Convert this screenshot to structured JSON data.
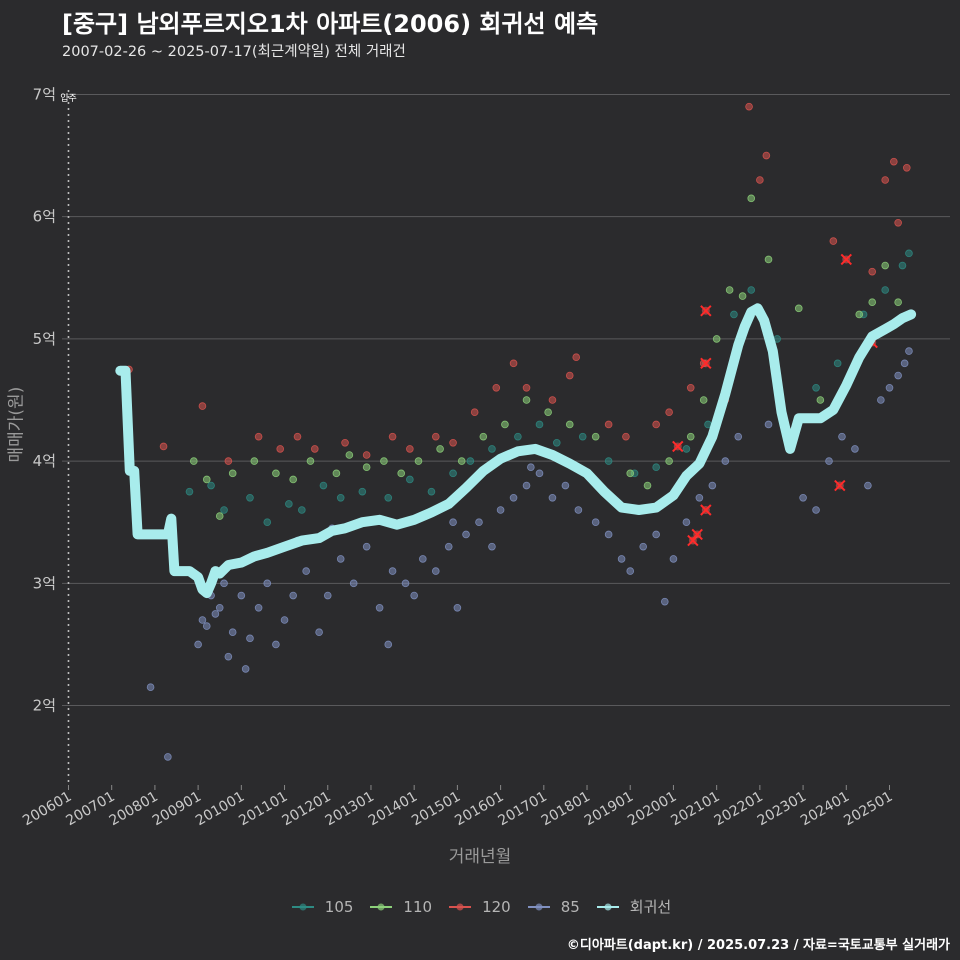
{
  "title": "[중구] 남외푸르지오1차 아파트(2006) 회귀선 예측",
  "subtitle": "2007-02-26 ~ 2025-07-17(최근계약일) 전체 거래건",
  "caption": "©디아파트(dapt.kr) / 2025.07.23 / 자료=국토교통부 실거래가",
  "chart_data": {
    "type": "scatter",
    "xlabel": "거래년월",
    "ylabel": "매매가(원)",
    "xlim": [
      2005.85,
      2026.4
    ],
    "ylim": [
      1.35,
      7.2
    ],
    "x_ticks": [
      {
        "v": 2006.0,
        "label": "200601"
      },
      {
        "v": 2007.0,
        "label": "200701"
      },
      {
        "v": 2008.0,
        "label": "200801"
      },
      {
        "v": 2009.0,
        "label": "200901"
      },
      {
        "v": 2010.0,
        "label": "201001"
      },
      {
        "v": 2011.0,
        "label": "201101"
      },
      {
        "v": 2012.0,
        "label": "201201"
      },
      {
        "v": 2013.0,
        "label": "201301"
      },
      {
        "v": 2014.0,
        "label": "201401"
      },
      {
        "v": 2015.0,
        "label": "201501"
      },
      {
        "v": 2016.0,
        "label": "201601"
      },
      {
        "v": 2017.0,
        "label": "201701"
      },
      {
        "v": 2018.0,
        "label": "201801"
      },
      {
        "v": 2019.0,
        "label": "201901"
      },
      {
        "v": 2020.0,
        "label": "202001"
      },
      {
        "v": 2021.0,
        "label": "202101"
      },
      {
        "v": 2022.0,
        "label": "202201"
      },
      {
        "v": 2023.0,
        "label": "202301"
      },
      {
        "v": 2024.0,
        "label": "202401"
      },
      {
        "v": 2025.0,
        "label": "202501"
      }
    ],
    "y_ticks": [
      {
        "v": 2,
        "label": "2억"
      },
      {
        "v": 3,
        "label": "3억"
      },
      {
        "v": 4,
        "label": "4억"
      },
      {
        "v": 5,
        "label": "5억"
      },
      {
        "v": 6,
        "label": "6억"
      },
      {
        "v": 7,
        "label": "7억"
      }
    ],
    "annotation": {
      "x": 2006.0,
      "label": "입주"
    },
    "grid": true,
    "legend_position": "bottom",
    "series": [
      {
        "name": "105",
        "color": "#2e8b83",
        "points": [
          [
            2008.8,
            3.75
          ],
          [
            2009.3,
            3.8
          ],
          [
            2009.6,
            3.6
          ],
          [
            2010.2,
            3.7
          ],
          [
            2010.6,
            3.5
          ],
          [
            2011.1,
            3.65
          ],
          [
            2011.4,
            3.6
          ],
          [
            2011.9,
            3.8
          ],
          [
            2012.3,
            3.7
          ],
          [
            2012.8,
            3.75
          ],
          [
            2013.4,
            3.7
          ],
          [
            2013.9,
            3.85
          ],
          [
            2014.4,
            3.75
          ],
          [
            2014.9,
            3.9
          ],
          [
            2015.3,
            4.0
          ],
          [
            2015.8,
            4.1
          ],
          [
            2016.4,
            4.2
          ],
          [
            2016.9,
            4.3
          ],
          [
            2017.3,
            4.15
          ],
          [
            2017.9,
            4.2
          ],
          [
            2018.5,
            4.0
          ],
          [
            2019.1,
            3.9
          ],
          [
            2019.6,
            3.95
          ],
          [
            2020.3,
            4.1
          ],
          [
            2020.8,
            4.3
          ],
          [
            2021.4,
            5.2
          ],
          [
            2021.8,
            5.4
          ],
          [
            2022.4,
            5.0
          ],
          [
            2023.3,
            4.6
          ],
          [
            2023.8,
            4.8
          ],
          [
            2024.4,
            5.2
          ],
          [
            2024.9,
            5.4
          ],
          [
            2025.3,
            5.6
          ],
          [
            2025.45,
            5.7
          ]
        ]
      },
      {
        "name": "110",
        "color": "#8dd17a",
        "points": [
          [
            2008.9,
            4.0
          ],
          [
            2009.2,
            3.85
          ],
          [
            2009.5,
            3.55
          ],
          [
            2009.8,
            3.9
          ],
          [
            2010.3,
            4.0
          ],
          [
            2010.8,
            3.9
          ],
          [
            2011.2,
            3.85
          ],
          [
            2011.6,
            4.0
          ],
          [
            2012.2,
            3.9
          ],
          [
            2012.5,
            4.05
          ],
          [
            2012.9,
            3.95
          ],
          [
            2013.3,
            4.0
          ],
          [
            2013.7,
            3.9
          ],
          [
            2014.1,
            4.0
          ],
          [
            2014.6,
            4.1
          ],
          [
            2015.1,
            4.0
          ],
          [
            2015.6,
            4.2
          ],
          [
            2016.1,
            4.3
          ],
          [
            2016.6,
            4.5
          ],
          [
            2017.1,
            4.4
          ],
          [
            2017.6,
            4.3
          ],
          [
            2018.2,
            4.2
          ],
          [
            2019.0,
            3.9
          ],
          [
            2019.4,
            3.8
          ],
          [
            2019.9,
            4.0
          ],
          [
            2020.4,
            4.2
          ],
          [
            2020.7,
            4.5
          ],
          [
            2021.0,
            5.0
          ],
          [
            2021.3,
            5.4
          ],
          [
            2021.6,
            5.35
          ],
          [
            2021.8,
            6.15
          ],
          [
            2022.2,
            5.65
          ],
          [
            2022.9,
            5.25
          ],
          [
            2023.4,
            4.5
          ],
          [
            2024.3,
            5.2
          ],
          [
            2024.6,
            5.3
          ],
          [
            2024.9,
            5.6
          ],
          [
            2025.2,
            5.3
          ]
        ]
      },
      {
        "name": "120",
        "color": "#d9534f",
        "points": [
          [
            2007.4,
            4.75
          ],
          [
            2008.2,
            4.12
          ],
          [
            2009.1,
            4.45
          ],
          [
            2009.7,
            4.0
          ],
          [
            2010.4,
            4.2
          ],
          [
            2010.9,
            4.1
          ],
          [
            2011.3,
            4.2
          ],
          [
            2011.7,
            4.1
          ],
          [
            2012.4,
            4.15
          ],
          [
            2012.9,
            4.05
          ],
          [
            2013.5,
            4.2
          ],
          [
            2013.9,
            4.1
          ],
          [
            2014.5,
            4.2
          ],
          [
            2014.9,
            4.15
          ],
          [
            2015.4,
            4.4
          ],
          [
            2015.9,
            4.6
          ],
          [
            2016.3,
            4.8
          ],
          [
            2016.6,
            4.6
          ],
          [
            2017.2,
            4.5
          ],
          [
            2017.6,
            4.7
          ],
          [
            2017.75,
            4.85
          ],
          [
            2018.5,
            4.3
          ],
          [
            2018.9,
            4.2
          ],
          [
            2019.6,
            4.3
          ],
          [
            2019.9,
            4.4
          ],
          [
            2020.4,
            4.6
          ],
          [
            2020.7,
            4.8
          ],
          [
            2021.2,
            4.5
          ],
          [
            2021.75,
            6.9
          ],
          [
            2022.0,
            6.3
          ],
          [
            2022.15,
            6.5
          ],
          [
            2023.7,
            5.8
          ],
          [
            2024.9,
            6.3
          ],
          [
            2025.1,
            6.45
          ],
          [
            2025.4,
            6.4
          ],
          [
            2025.2,
            5.95
          ],
          [
            2024.6,
            5.55
          ]
        ]
      },
      {
        "name": "85",
        "color": "#8090c0",
        "points": [
          [
            2007.9,
            2.15
          ],
          [
            2008.3,
            1.58
          ],
          [
            2009.0,
            2.5
          ],
          [
            2009.1,
            2.7
          ],
          [
            2009.2,
            2.65
          ],
          [
            2009.3,
            2.9
          ],
          [
            2009.4,
            2.75
          ],
          [
            2009.5,
            2.8
          ],
          [
            2009.6,
            3.0
          ],
          [
            2009.7,
            2.4
          ],
          [
            2009.8,
            2.6
          ],
          [
            2010.0,
            2.9
          ],
          [
            2010.1,
            2.3
          ],
          [
            2010.2,
            2.55
          ],
          [
            2010.4,
            2.8
          ],
          [
            2010.6,
            3.0
          ],
          [
            2010.8,
            2.5
          ],
          [
            2011.0,
            2.7
          ],
          [
            2011.2,
            2.9
          ],
          [
            2011.5,
            3.1
          ],
          [
            2011.8,
            2.6
          ],
          [
            2012.0,
            2.9
          ],
          [
            2012.3,
            3.2
          ],
          [
            2012.6,
            3.0
          ],
          [
            2012.9,
            3.3
          ],
          [
            2013.2,
            2.8
          ],
          [
            2013.5,
            3.1
          ],
          [
            2013.8,
            3.0
          ],
          [
            2014.0,
            2.9
          ],
          [
            2014.2,
            3.2
          ],
          [
            2014.5,
            3.1
          ],
          [
            2014.8,
            3.3
          ],
          [
            2015.0,
            2.8
          ],
          [
            2015.2,
            3.4
          ],
          [
            2015.5,
            3.5
          ],
          [
            2015.8,
            3.3
          ],
          [
            2016.0,
            3.6
          ],
          [
            2016.3,
            3.7
          ],
          [
            2016.6,
            3.8
          ],
          [
            2016.9,
            3.9
          ],
          [
            2017.2,
            3.7
          ],
          [
            2017.5,
            3.8
          ],
          [
            2017.8,
            3.6
          ],
          [
            2018.2,
            3.5
          ],
          [
            2018.5,
            3.4
          ],
          [
            2018.8,
            3.2
          ],
          [
            2019.0,
            3.1
          ],
          [
            2019.3,
            3.3
          ],
          [
            2019.6,
            3.4
          ],
          [
            2019.8,
            2.85
          ],
          [
            2020.0,
            3.2
          ],
          [
            2020.3,
            3.5
          ],
          [
            2020.6,
            3.7
          ],
          [
            2020.9,
            3.8
          ],
          [
            2021.2,
            4.0
          ],
          [
            2021.5,
            4.2
          ],
          [
            2022.2,
            4.3
          ],
          [
            2022.5,
            4.4
          ],
          [
            2023.0,
            3.7
          ],
          [
            2023.3,
            3.6
          ],
          [
            2023.6,
            4.0
          ],
          [
            2023.9,
            4.2
          ],
          [
            2024.2,
            4.1
          ],
          [
            2024.5,
            3.8
          ],
          [
            2024.8,
            4.5
          ],
          [
            2025.0,
            4.6
          ],
          [
            2025.2,
            4.7
          ],
          [
            2025.35,
            4.8
          ],
          [
            2025.45,
            4.9
          ],
          [
            2013.4,
            2.5
          ],
          [
            2011.3,
            3.35
          ],
          [
            2012.1,
            3.45
          ],
          [
            2014.9,
            3.5
          ],
          [
            2016.7,
            3.95
          ]
        ]
      }
    ],
    "highlights": [
      [
        2020.1,
        4.12
      ],
      [
        2020.45,
        3.35
      ],
      [
        2020.55,
        3.4
      ],
      [
        2020.75,
        3.6
      ],
      [
        2020.75,
        4.8
      ],
      [
        2020.75,
        5.23
      ],
      [
        2023.85,
        3.8
      ],
      [
        2024.0,
        5.65
      ],
      [
        2024.6,
        4.97
      ]
    ],
    "regression": {
      "name": "회귀선",
      "color": "#a8ecec",
      "points": [
        [
          2007.2,
          4.74
        ],
        [
          2007.32,
          4.74
        ],
        [
          2007.42,
          3.92
        ],
        [
          2007.52,
          3.92
        ],
        [
          2007.6,
          3.4
        ],
        [
          2008.0,
          3.4
        ],
        [
          2008.3,
          3.4
        ],
        [
          2008.38,
          3.53
        ],
        [
          2008.45,
          3.1
        ],
        [
          2008.8,
          3.1
        ],
        [
          2009.0,
          3.05
        ],
        [
          2009.1,
          2.95
        ],
        [
          2009.2,
          2.92
        ],
        [
          2009.3,
          3.0
        ],
        [
          2009.4,
          3.1
        ],
        [
          2009.5,
          3.08
        ],
        [
          2009.7,
          3.15
        ],
        [
          2010.0,
          3.17
        ],
        [
          2010.3,
          3.22
        ],
        [
          2010.6,
          3.25
        ],
        [
          2011.0,
          3.3
        ],
        [
          2011.4,
          3.35
        ],
        [
          2011.8,
          3.37
        ],
        [
          2012.1,
          3.43
        ],
        [
          2012.4,
          3.45
        ],
        [
          2012.8,
          3.5
        ],
        [
          2013.2,
          3.52
        ],
        [
          2013.6,
          3.48
        ],
        [
          2014.0,
          3.52
        ],
        [
          2014.4,
          3.58
        ],
        [
          2014.8,
          3.65
        ],
        [
          2015.2,
          3.78
        ],
        [
          2015.6,
          3.92
        ],
        [
          2016.0,
          4.02
        ],
        [
          2016.4,
          4.08
        ],
        [
          2016.8,
          4.1
        ],
        [
          2017.2,
          4.05
        ],
        [
          2017.6,
          3.98
        ],
        [
          2018.0,
          3.9
        ],
        [
          2018.4,
          3.75
        ],
        [
          2018.8,
          3.62
        ],
        [
          2019.2,
          3.6
        ],
        [
          2019.6,
          3.62
        ],
        [
          2020.0,
          3.72
        ],
        [
          2020.3,
          3.88
        ],
        [
          2020.6,
          3.98
        ],
        [
          2020.9,
          4.2
        ],
        [
          2021.2,
          4.55
        ],
        [
          2021.5,
          4.95
        ],
        [
          2021.65,
          5.1
        ],
        [
          2021.8,
          5.22
        ],
        [
          2021.95,
          5.25
        ],
        [
          2022.1,
          5.15
        ],
        [
          2022.3,
          4.9
        ],
        [
          2022.5,
          4.4
        ],
        [
          2022.7,
          4.1
        ],
        [
          2022.9,
          4.35
        ],
        [
          2023.1,
          4.35
        ],
        [
          2023.4,
          4.35
        ],
        [
          2023.7,
          4.42
        ],
        [
          2024.0,
          4.62
        ],
        [
          2024.3,
          4.85
        ],
        [
          2024.6,
          5.02
        ],
        [
          2024.9,
          5.08
        ],
        [
          2025.1,
          5.12
        ],
        [
          2025.3,
          5.17
        ],
        [
          2025.5,
          5.2
        ]
      ]
    },
    "legend": [
      {
        "name": "105",
        "color": "#2e8b83"
      },
      {
        "name": "110",
        "color": "#8dd17a"
      },
      {
        "name": "120",
        "color": "#d9534f"
      },
      {
        "name": "85",
        "color": "#8090c0"
      },
      {
        "name": "회귀선",
        "color": "#a8ecec"
      }
    ]
  }
}
